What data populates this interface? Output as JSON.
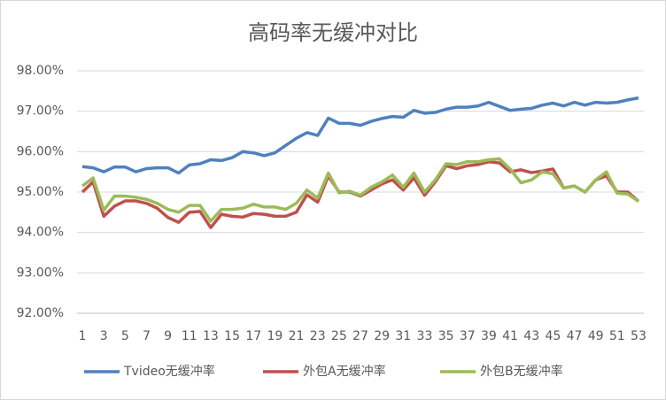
{
  "chart_data": {
    "type": "line",
    "title": "高码率无缓冲对比",
    "x": [
      1,
      2,
      3,
      4,
      5,
      6,
      7,
      8,
      9,
      10,
      11,
      12,
      13,
      14,
      15,
      16,
      17,
      18,
      19,
      20,
      21,
      22,
      23,
      24,
      25,
      26,
      27,
      28,
      29,
      30,
      31,
      32,
      33,
      34,
      35,
      36,
      37,
      38,
      39,
      40,
      41,
      42,
      43,
      44,
      45,
      46,
      47,
      48,
      49,
      50,
      51,
      52,
      53
    ],
    "xlim": [
      0.5,
      53.5
    ],
    "xticks": [
      1,
      3,
      5,
      7,
      9,
      11,
      13,
      15,
      17,
      19,
      21,
      23,
      25,
      27,
      29,
      31,
      33,
      35,
      37,
      39,
      41,
      43,
      45,
      47,
      49,
      51,
      53
    ],
    "ylim": [
      92,
      98
    ],
    "yticks": [
      {
        "value": 92,
        "label": "92.00%"
      },
      {
        "value": 93,
        "label": "93.00%"
      },
      {
        "value": 94,
        "label": "94.00%"
      },
      {
        "value": 95,
        "label": "95.00%"
      },
      {
        "value": 96,
        "label": "96.00%"
      },
      {
        "value": 97,
        "label": "97.00%"
      },
      {
        "value": 98,
        "label": "98.00%"
      }
    ],
    "grid": true,
    "legend": "bottom",
    "series": [
      {
        "name": "Tvideo无缓冲率",
        "color": "#4f81bd",
        "values": [
          95.63,
          95.6,
          95.5,
          95.62,
          95.62,
          95.5,
          95.58,
          95.6,
          95.6,
          95.47,
          95.67,
          95.7,
          95.8,
          95.78,
          95.85,
          96.0,
          95.97,
          95.9,
          95.97,
          96.15,
          96.33,
          96.47,
          96.4,
          96.83,
          96.7,
          96.7,
          96.65,
          96.75,
          96.82,
          96.87,
          96.85,
          97.02,
          96.95,
          96.97,
          97.05,
          97.1,
          97.1,
          97.13,
          97.22,
          97.12,
          97.02,
          97.05,
          97.07,
          97.15,
          97.2,
          97.13,
          97.22,
          97.15,
          97.22,
          97.2,
          97.22,
          97.28,
          97.33
        ]
      },
      {
        "name": "外包A无缓冲率",
        "color": "#c0504d",
        "values": [
          95.0,
          95.25,
          94.4,
          94.65,
          94.78,
          94.78,
          94.72,
          94.6,
          94.37,
          94.25,
          94.5,
          94.52,
          94.12,
          94.45,
          94.4,
          94.38,
          94.47,
          94.45,
          94.4,
          94.4,
          94.5,
          94.93,
          94.75,
          95.4,
          95.0,
          95.0,
          94.9,
          95.05,
          95.2,
          95.3,
          95.05,
          95.35,
          94.92,
          95.25,
          95.65,
          95.58,
          95.65,
          95.68,
          95.75,
          95.72,
          95.5,
          95.55,
          95.48,
          95.52,
          95.57,
          95.1,
          95.15,
          95.0,
          95.3,
          95.4,
          95.0,
          95.0,
          94.77
        ]
      },
      {
        "name": "外包B无缓冲率",
        "color": "#9bbb59",
        "values": [
          95.15,
          95.35,
          94.55,
          94.9,
          94.9,
          94.87,
          94.82,
          94.72,
          94.57,
          94.5,
          94.67,
          94.67,
          94.28,
          94.57,
          94.57,
          94.6,
          94.7,
          94.63,
          94.63,
          94.57,
          94.72,
          95.05,
          94.85,
          95.47,
          94.98,
          95.02,
          94.92,
          95.12,
          95.25,
          95.42,
          95.12,
          95.47,
          95.0,
          95.3,
          95.7,
          95.68,
          95.75,
          95.75,
          95.8,
          95.82,
          95.57,
          95.23,
          95.3,
          95.5,
          95.45,
          95.1,
          95.15,
          95.0,
          95.3,
          95.5,
          94.97,
          94.95,
          94.77
        ]
      }
    ]
  }
}
